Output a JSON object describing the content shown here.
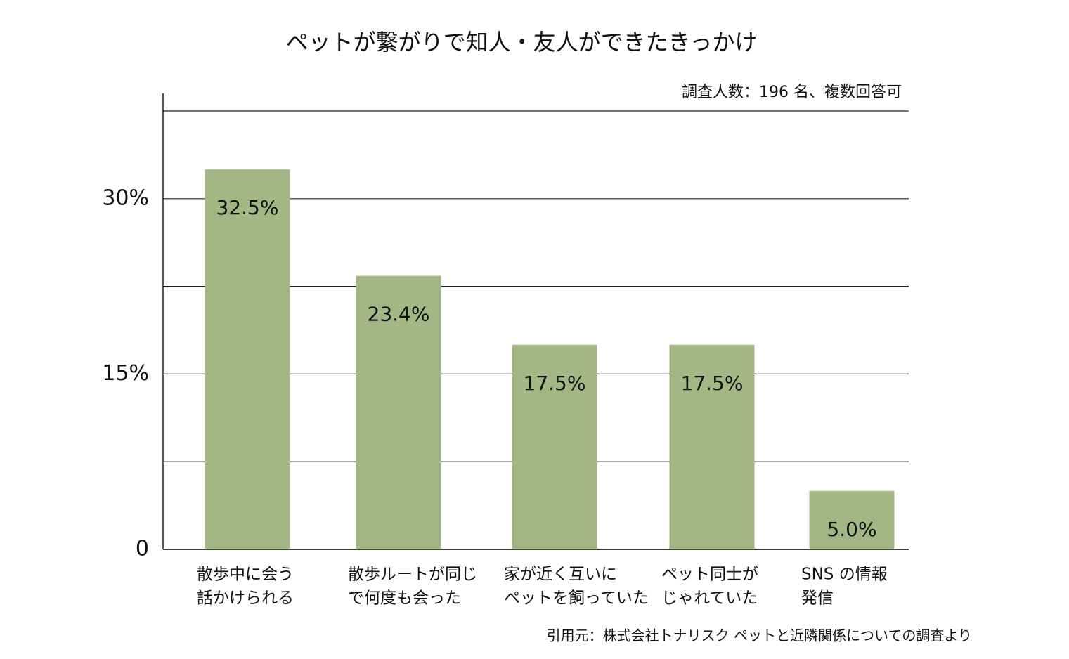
{
  "chart_data": {
    "type": "bar",
    "title": "ペットが繋がりで知人・友人ができたきっかけ",
    "subtitle": "調査人数：196 名、複数回答可",
    "source": "引用元：株式会社トナリスク ペットと近隣関係についての調査より",
    "categories": [
      [
        "散歩中に会う",
        "話かけられる"
      ],
      [
        "散歩ルートが同じ",
        "で何度も会った"
      ],
      [
        "家が近く互いに",
        "ペットを飼っていた"
      ],
      [
        "ペット同士が",
        "じゃれていた"
      ],
      [
        "SNS の情報",
        "発信"
      ]
    ],
    "values": [
      32.5,
      23.4,
      17.5,
      17.5,
      5.0
    ],
    "value_labels": [
      "32.5%",
      "23.4%",
      "17.5%",
      "17.5%",
      "5.0%"
    ],
    "color": "#a3b784",
    "ylim": [
      0,
      37.5
    ],
    "yticks": [
      0,
      {
        "value": 15,
        "label": "15%"
      },
      {
        "value": 30,
        "label": "30%"
      }
    ],
    "minor_yticks": [
      7.5,
      22.5,
      37.5
    ],
    "grid": true
  }
}
